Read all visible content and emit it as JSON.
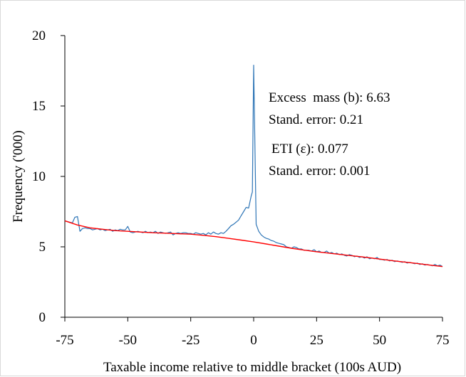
{
  "chart_data": {
    "type": "line",
    "title": "",
    "xlabel": "Taxable income relative to middle bracket (100s AUD)",
    "ylabel": "Frequency ('000)",
    "xlim": [
      -75,
      75
    ],
    "ylim": [
      0,
      20
    ],
    "x_ticks": [
      "-75",
      "-50",
      "-25",
      "0",
      "25",
      "50",
      "75"
    ],
    "y_ticks": [
      "0",
      "5",
      "10",
      "15",
      "20"
    ],
    "grid": false,
    "legend": "none",
    "annotations": {
      "line1": "Excess  mass (b): 6.63",
      "line2": "Stand. error: 0.21",
      "line3": "ETI (ε): 0.077",
      "line4": "Stand. error: 0.001"
    },
    "series": [
      {
        "color": "#2e75b6",
        "style": "observed",
        "points": [
          [
            -75,
            6.85
          ],
          [
            -74,
            6.8
          ],
          [
            -73,
            6.75
          ],
          [
            -72,
            6.7
          ],
          [
            -71,
            7.1
          ],
          [
            -70,
            7.15
          ],
          [
            -69,
            6.1
          ],
          [
            -68,
            6.3
          ],
          [
            -67,
            6.35
          ],
          [
            -66,
            6.3
          ],
          [
            -65,
            6.3
          ],
          [
            -64,
            6.2
          ],
          [
            -63,
            6.25
          ],
          [
            -62,
            6.3
          ],
          [
            -61,
            6.2
          ],
          [
            -60,
            6.25
          ],
          [
            -59,
            6.15
          ],
          [
            -58,
            6.2
          ],
          [
            -57,
            6.25
          ],
          [
            -56,
            6.1
          ],
          [
            -55,
            6.2
          ],
          [
            -54,
            6.15
          ],
          [
            -53,
            6.25
          ],
          [
            -52,
            6.2
          ],
          [
            -51,
            6.2
          ],
          [
            -50,
            6.45
          ],
          [
            -49,
            6.05
          ],
          [
            -48,
            6.0
          ],
          [
            -47,
            6.05
          ],
          [
            -46,
            6.1
          ],
          [
            -45,
            6.05
          ],
          [
            -44,
            6.0
          ],
          [
            -43,
            6.1
          ],
          [
            -42,
            6.0
          ],
          [
            -41,
            6.05
          ],
          [
            -40,
            6.0
          ],
          [
            -39,
            6.1
          ],
          [
            -38,
            5.95
          ],
          [
            -37,
            6.05
          ],
          [
            -36,
            6.0
          ],
          [
            -35,
            5.95
          ],
          [
            -34,
            6.0
          ],
          [
            -33,
            6.05
          ],
          [
            -32,
            5.85
          ],
          [
            -31,
            5.95
          ],
          [
            -30,
            6.0
          ],
          [
            -29,
            5.95
          ],
          [
            -28,
            6.0
          ],
          [
            -27,
            6.0
          ],
          [
            -26,
            5.95
          ],
          [
            -25,
            5.95
          ],
          [
            -24,
            5.9
          ],
          [
            -23,
            6.0
          ],
          [
            -22,
            5.95
          ],
          [
            -21,
            5.9
          ],
          [
            -20,
            5.95
          ],
          [
            -19,
            5.85
          ],
          [
            -18,
            6.0
          ],
          [
            -17,
            5.9
          ],
          [
            -16,
            6.05
          ],
          [
            -15,
            5.95
          ],
          [
            -14,
            5.9
          ],
          [
            -13,
            6.0
          ],
          [
            -12,
            5.95
          ],
          [
            -11,
            6.1
          ],
          [
            -10,
            6.3
          ],
          [
            -9,
            6.5
          ],
          [
            -8,
            6.6
          ],
          [
            -7,
            6.75
          ],
          [
            -6,
            6.9
          ],
          [
            -5,
            7.2
          ],
          [
            -4,
            7.5
          ],
          [
            -3,
            7.8
          ],
          [
            -2,
            7.75
          ],
          [
            -1,
            8.6
          ],
          [
            -0.5,
            8.9
          ],
          [
            0,
            17.9
          ],
          [
            1,
            6.6
          ],
          [
            2,
            6.1
          ],
          [
            3,
            5.85
          ],
          [
            4,
            5.7
          ],
          [
            5,
            5.6
          ],
          [
            6,
            5.55
          ],
          [
            7,
            5.45
          ],
          [
            8,
            5.4
          ],
          [
            9,
            5.3
          ],
          [
            10,
            5.25
          ],
          [
            11,
            5.2
          ],
          [
            12,
            5.15
          ],
          [
            13,
            5.0
          ],
          [
            14,
            4.95
          ],
          [
            15,
            4.9
          ],
          [
            16,
            5.0
          ],
          [
            17,
            4.95
          ],
          [
            18,
            4.85
          ],
          [
            19,
            4.85
          ],
          [
            20,
            4.75
          ],
          [
            21,
            4.75
          ],
          [
            22,
            4.75
          ],
          [
            23,
            4.7
          ],
          [
            24,
            4.8
          ],
          [
            25,
            4.65
          ],
          [
            26,
            4.7
          ],
          [
            27,
            4.6
          ],
          [
            28,
            4.6
          ],
          [
            29,
            4.7
          ],
          [
            30,
            4.55
          ],
          [
            31,
            4.6
          ],
          [
            32,
            4.5
          ],
          [
            33,
            4.55
          ],
          [
            34,
            4.45
          ],
          [
            35,
            4.5
          ],
          [
            36,
            4.4
          ],
          [
            37,
            4.35
          ],
          [
            38,
            4.45
          ],
          [
            39,
            4.4
          ],
          [
            40,
            4.3
          ],
          [
            41,
            4.35
          ],
          [
            42,
            4.25
          ],
          [
            43,
            4.3
          ],
          [
            44,
            4.2
          ],
          [
            45,
            4.3
          ],
          [
            46,
            4.15
          ],
          [
            47,
            4.2
          ],
          [
            48,
            4.15
          ],
          [
            49,
            4.25
          ],
          [
            50,
            4.1
          ],
          [
            51,
            4.1
          ],
          [
            52,
            4.05
          ],
          [
            53,
            4.1
          ],
          [
            54,
            4.0
          ],
          [
            55,
            4.05
          ],
          [
            56,
            3.95
          ],
          [
            57,
            4.0
          ],
          [
            58,
            3.95
          ],
          [
            59,
            3.9
          ],
          [
            60,
            3.95
          ],
          [
            61,
            3.85
          ],
          [
            62,
            3.9
          ],
          [
            63,
            3.85
          ],
          [
            64,
            3.8
          ],
          [
            65,
            3.85
          ],
          [
            66,
            3.75
          ],
          [
            67,
            3.8
          ],
          [
            68,
            3.7
          ],
          [
            69,
            3.75
          ],
          [
            70,
            3.7
          ],
          [
            71,
            3.65
          ],
          [
            72,
            3.75
          ],
          [
            73,
            3.65
          ],
          [
            74,
            3.7
          ],
          [
            75,
            3.6
          ]
        ]
      },
      {
        "color": "#ff0000",
        "style": "counterfactual",
        "points": [
          [
            -75,
            6.85
          ],
          [
            -70,
            6.55
          ],
          [
            -65,
            6.35
          ],
          [
            -60,
            6.25
          ],
          [
            -55,
            6.15
          ],
          [
            -50,
            6.1
          ],
          [
            -45,
            6.05
          ],
          [
            -40,
            6.0
          ],
          [
            -35,
            5.97
          ],
          [
            -30,
            5.93
          ],
          [
            -25,
            5.9
          ],
          [
            -20,
            5.82
          ],
          [
            -15,
            5.72
          ],
          [
            -10,
            5.6
          ],
          [
            -5,
            5.48
          ],
          [
            0,
            5.35
          ],
          [
            5,
            5.2
          ],
          [
            10,
            5.05
          ],
          [
            15,
            4.9
          ],
          [
            20,
            4.77
          ],
          [
            25,
            4.65
          ],
          [
            30,
            4.55
          ],
          [
            35,
            4.45
          ],
          [
            40,
            4.35
          ],
          [
            45,
            4.25
          ],
          [
            50,
            4.13
          ],
          [
            55,
            4.02
          ],
          [
            60,
            3.92
          ],
          [
            65,
            3.82
          ],
          [
            70,
            3.7
          ],
          [
            75,
            3.6
          ]
        ]
      }
    ]
  }
}
